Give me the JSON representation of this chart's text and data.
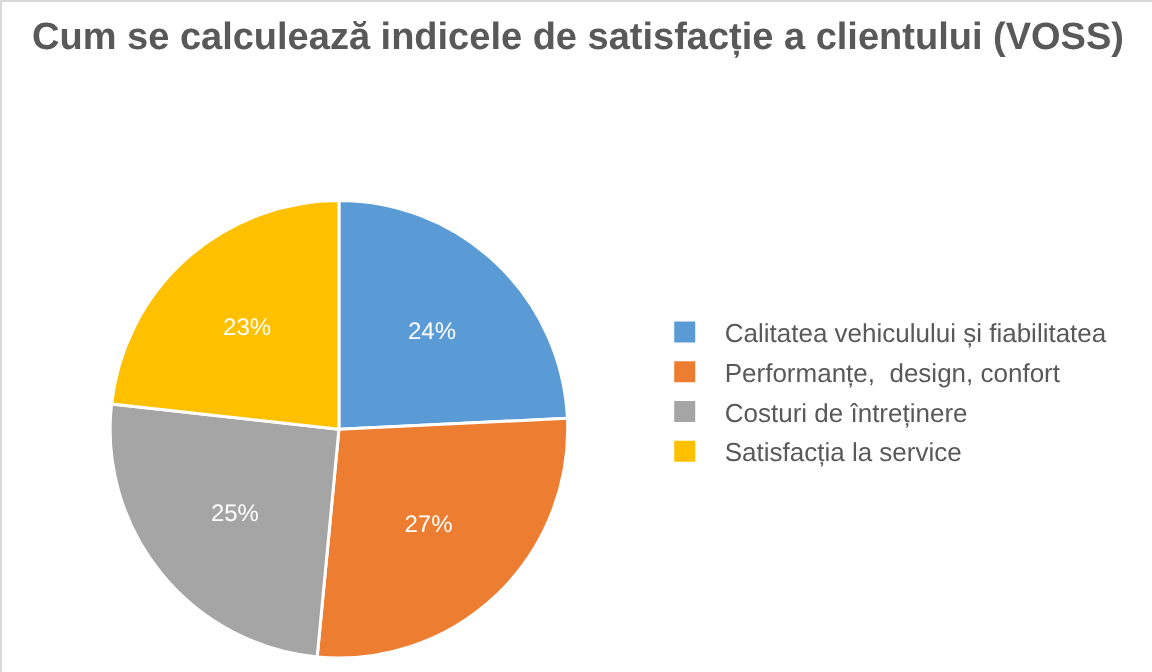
{
  "chart_data": {
    "type": "pie",
    "title": "Cum se calculează indicele de satisfacție a clientului (VOSS)",
    "categories": [
      "Calitatea vehiculului și fiabilitatea",
      "Performanțe,  design, confort",
      "Costuri de întreținere",
      "Satisfacția la service"
    ],
    "values": [
      24,
      27,
      25,
      23
    ],
    "value_labels": [
      "24%",
      "27%",
      "25%",
      "23%"
    ],
    "colors": [
      "#5b9bd5",
      "#ed7d31",
      "#a5a5a5",
      "#ffc000"
    ],
    "legend": "right"
  }
}
